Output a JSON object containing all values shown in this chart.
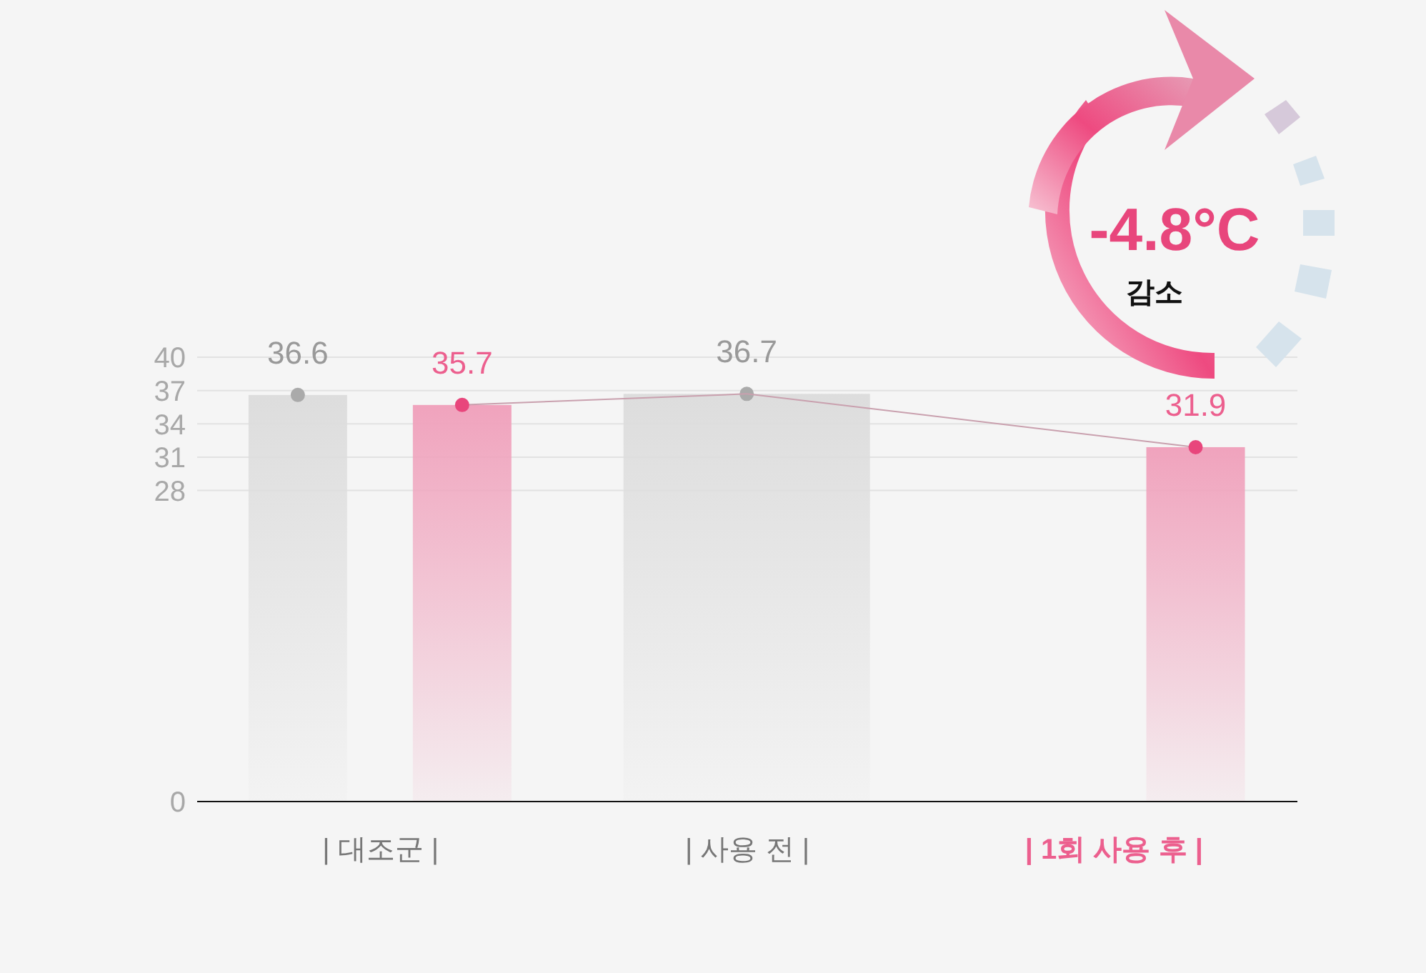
{
  "chart_data": {
    "type": "bar",
    "categories": [
      "| 대조군 |",
      "| 사용 전 |",
      "| 1회 사용 후 |"
    ],
    "series": [
      {
        "color": "#dddddd",
        "values": [
          36.6,
          36.7,
          null
        ]
      },
      {
        "color": "#f0a3bd",
        "values": [
          35.7,
          null,
          31.9
        ]
      }
    ],
    "ylim": [
      0,
      40
    ],
    "yticks": [
      0,
      28,
      31,
      34,
      37,
      40
    ],
    "grid": "y",
    "data_labels": true,
    "annotations": [
      "-4.8°C",
      "감소"
    ]
  }
}
